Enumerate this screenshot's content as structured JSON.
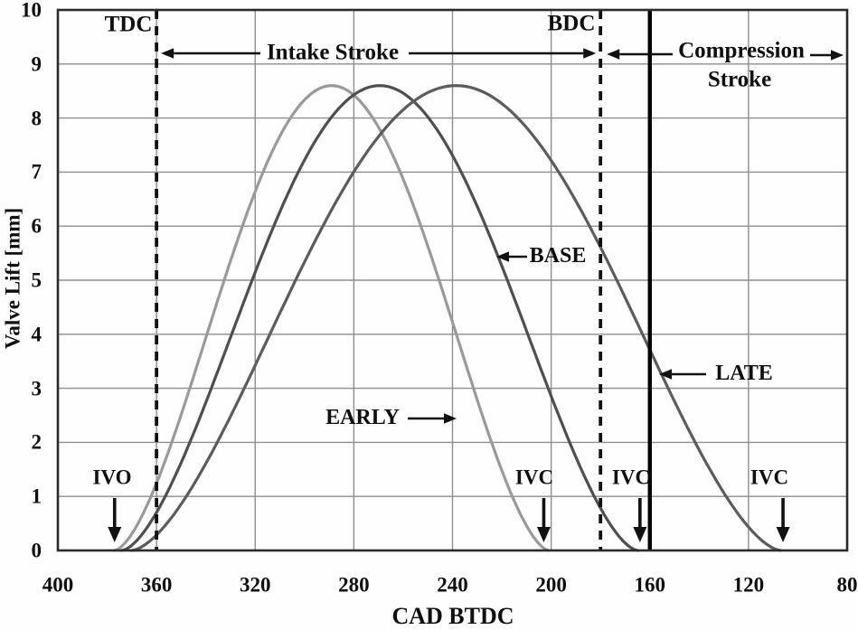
{
  "chart_data": {
    "type": "line",
    "title": "",
    "xlabel": "CAD BTDC",
    "ylabel": "Valve Lift [mm]",
    "x_axis": {
      "min": 400,
      "max": 80,
      "reversed": true,
      "tick_step": 40,
      "ticks": [
        400,
        360,
        320,
        280,
        240,
        200,
        160,
        120,
        80
      ]
    },
    "y_axis": {
      "min": 0,
      "max": 10,
      "tick_step": 1,
      "ticks": [
        0,
        1,
        2,
        3,
        4,
        5,
        6,
        7,
        8,
        9,
        10
      ]
    },
    "grid": true,
    "series": [
      {
        "name": "EARLY",
        "color": "#9a9a9a",
        "peak_lift_mm": 8.6,
        "ivo_cad": 377,
        "peak_cad": 289,
        "ivc_cad": 201,
        "shape_exponent": 0.8
      },
      {
        "name": "BASE",
        "color": "#4f4f4f",
        "peak_lift_mm": 8.6,
        "ivo_cad": 374,
        "peak_cad": 269.5,
        "ivc_cad": 165,
        "shape_exponent": 0.8
      },
      {
        "name": "LATE",
        "color": "#5c5c5c",
        "peak_lift_mm": 8.6,
        "ivo_cad": 370,
        "peak_cad": 238.5,
        "ivc_cad": 107,
        "shape_exponent": 0.8
      }
    ],
    "reference_lines": [
      {
        "label": "TDC",
        "cad": 360,
        "style": "dashed"
      },
      {
        "label": "BDC",
        "cad": 180,
        "style": "dashed"
      },
      {
        "label": "",
        "cad": 160,
        "style": "solid"
      }
    ],
    "annotations": {
      "tdc": "TDC",
      "bdc": "BDC",
      "intake_stroke": "Intake Stroke",
      "compression_line1": "Compression",
      "compression_line2": "Stroke",
      "ivo": "IVO",
      "ivc": "IVC",
      "ivo_marker_cad": 377,
      "ivc_markers_cad": [
        203,
        164,
        106
      ]
    }
  }
}
